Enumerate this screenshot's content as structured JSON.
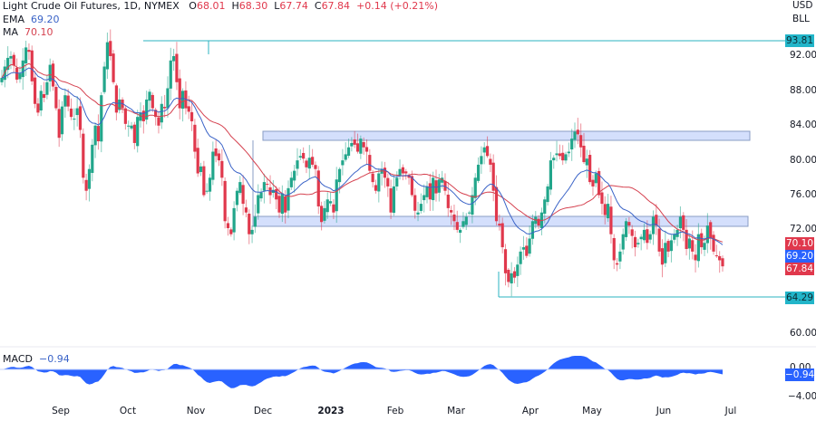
{
  "header": {
    "symbol": "Light Crude Oil Futures, 1D, NYMEX",
    "open_label": "O",
    "open": "68.01",
    "high_label": "H",
    "high": "68.30",
    "low_label": "L",
    "low": "67.74",
    "close_label": "C",
    "close": "67.84",
    "change": "+0.14 (+0.21%)"
  },
  "indicators": {
    "ema_label": "EMA",
    "ema_value": "69.20",
    "ma_label": "MA",
    "ma_value": "70.10",
    "macd_label": "MACD",
    "macd_value": "−0.94"
  },
  "currency": {
    "line1": "USD",
    "line2": "BLL"
  },
  "price_axis": {
    "ticks": [
      "92.00",
      "88.00",
      "84.00",
      "80.00",
      "76.00",
      "72.00",
      "60.00"
    ],
    "tags": {
      "level_high": "93.81",
      "ma": "70.10",
      "ema": "69.20",
      "last": "67.84",
      "level_low": "64.29"
    }
  },
  "macd_axis": {
    "ticks": [
      "0.00",
      "−4.00"
    ],
    "tag": "−0.94"
  },
  "time_axis": {
    "labels": [
      "Sep",
      "Oct",
      "Nov",
      "Dec",
      "2023",
      "Feb",
      "Mar",
      "Apr",
      "May",
      "Jun",
      "Jul"
    ]
  },
  "colors": {
    "up": "#22a68b",
    "down": "#e0384c",
    "ema": "#3a63c7",
    "ma": "#d5414f",
    "level": "#2bb3c0",
    "zone_fill": "#d4dffc",
    "zone_border": "#8a9cc4",
    "macd_fill": "#2962ff",
    "tag_teal": "#22b5c9",
    "tag_red": "#e0384c",
    "tag_blue": "#2962ff"
  },
  "chart_data": {
    "type": "candlestick",
    "title": "Light Crude Oil Futures, 1D, NYMEX",
    "xlabel": "",
    "ylabel": "USD/BLL",
    "ylim": [
      57,
      97
    ],
    "time_labels": [
      "Sep",
      "Oct",
      "Nov",
      "Dec",
      "2023",
      "Feb",
      "Mar",
      "Apr",
      "May",
      "Jun",
      "Jul"
    ],
    "last": {
      "open": 68.01,
      "high": 68.3,
      "low": 67.74,
      "close": 67.84,
      "change": 0.14,
      "change_pct": 0.21
    },
    "ema": 69.2,
    "ma": 70.1,
    "horizontal_levels": [
      93.81,
      64.29
    ],
    "zones": [
      {
        "name": "resistance",
        "top": 83.5,
        "bottom": 82.5,
        "from": "Dec",
        "to": "Jun"
      },
      {
        "name": "support",
        "top": 73.7,
        "bottom": 72.5,
        "from": "Dec",
        "to": "Jun"
      }
    ],
    "closes": [
      89.5,
      90.8,
      91.8,
      92.0,
      90.9,
      89.3,
      90.0,
      91.5,
      93.0,
      92.5,
      89.1,
      86.5,
      85.5,
      88.0,
      87.2,
      89.0,
      91.0,
      88.5,
      86.0,
      82.6,
      86.2,
      87.5,
      86.2,
      85.0,
      84.8,
      86.0,
      83.5,
      78.0,
      76.5,
      79.0,
      81.8,
      84.0,
      82.2,
      87.5,
      90.8,
      93.6,
      92.0,
      89.0,
      85.5,
      87.0,
      86.0,
      84.2,
      84.0,
      84.0,
      82.0,
      85.0,
      85.5,
      84.5,
      87.0,
      87.9,
      86.0,
      85.0,
      84.0,
      86.5,
      86.0,
      88.3,
      91.5,
      92.0,
      89.0,
      86.0,
      88.0,
      86.0,
      85.6,
      84.5,
      81.0,
      78.5,
      79.3,
      76.0,
      76.5,
      78.0,
      81.0,
      80.5,
      80.0,
      78.0,
      73.0,
      72.2,
      71.5,
      74.5,
      76.5,
      77.5,
      75.0,
      74.0,
      71.5,
      72.0,
      73.5,
      76.0,
      76.3,
      77.5,
      77.2,
      76.0,
      76.6,
      75.5,
      74.0,
      76.2,
      74.0,
      76.8,
      78.0,
      78.8,
      80.0,
      80.5,
      80.2,
      79.2,
      80.3,
      79.5,
      79.0,
      74.7,
      72.9,
      74.5,
      75.5,
      75.3,
      74.0,
      77.8,
      79.0,
      80.0,
      80.7,
      81.5,
      82.0,
      81.8,
      81.0,
      82.5,
      81.5,
      81.0,
      78.8,
      77.5,
      76.5,
      78.5,
      79.0,
      78.0,
      77.0,
      74.0,
      77.0,
      78.0,
      79.0,
      78.5,
      78.5,
      78.0,
      76.0,
      74.2,
      74.0,
      75.0,
      76.0,
      77.0,
      75.5,
      78.0,
      76.2,
      77.8,
      78.0,
      76.5,
      74.5,
      74.0,
      73.0,
      72.0,
      72.0,
      73.0,
      73.5,
      74.0,
      76.0,
      78.0,
      79.5,
      80.5,
      81.5,
      80.5,
      79.5,
      76.5,
      73.0,
      72.5,
      70.0,
      67.0,
      66.0,
      67.0,
      66.5,
      68.0,
      69.5,
      70.0,
      69.0,
      71.0,
      73.0,
      73.5,
      72.5,
      74.0,
      75.5,
      77.0,
      80.0,
      80.3,
      80.8,
      80.5,
      80.0,
      80.7,
      81.0,
      82.5,
      83.3,
      83.0,
      81.5,
      79.8,
      80.2,
      77.5,
      77.0,
      78.5,
      76.0,
      75.0,
      73.7,
      75.0,
      71.5,
      68.5,
      68.0,
      69.5,
      71.5,
      73.0,
      72.5,
      71.3,
      70.0,
      70.5,
      71.2,
      72.0,
      70.5,
      71.5,
      73.5,
      72.5,
      69.5,
      68.0,
      70.5,
      69.5,
      70.8,
      71.5,
      72.0,
      73.5,
      72.0,
      69.8,
      71.0,
      69.5,
      68.5,
      71.5,
      70.0,
      70.5,
      72.5,
      71.0,
      69.5,
      69.0,
      68.5,
      67.8
    ]
  }
}
